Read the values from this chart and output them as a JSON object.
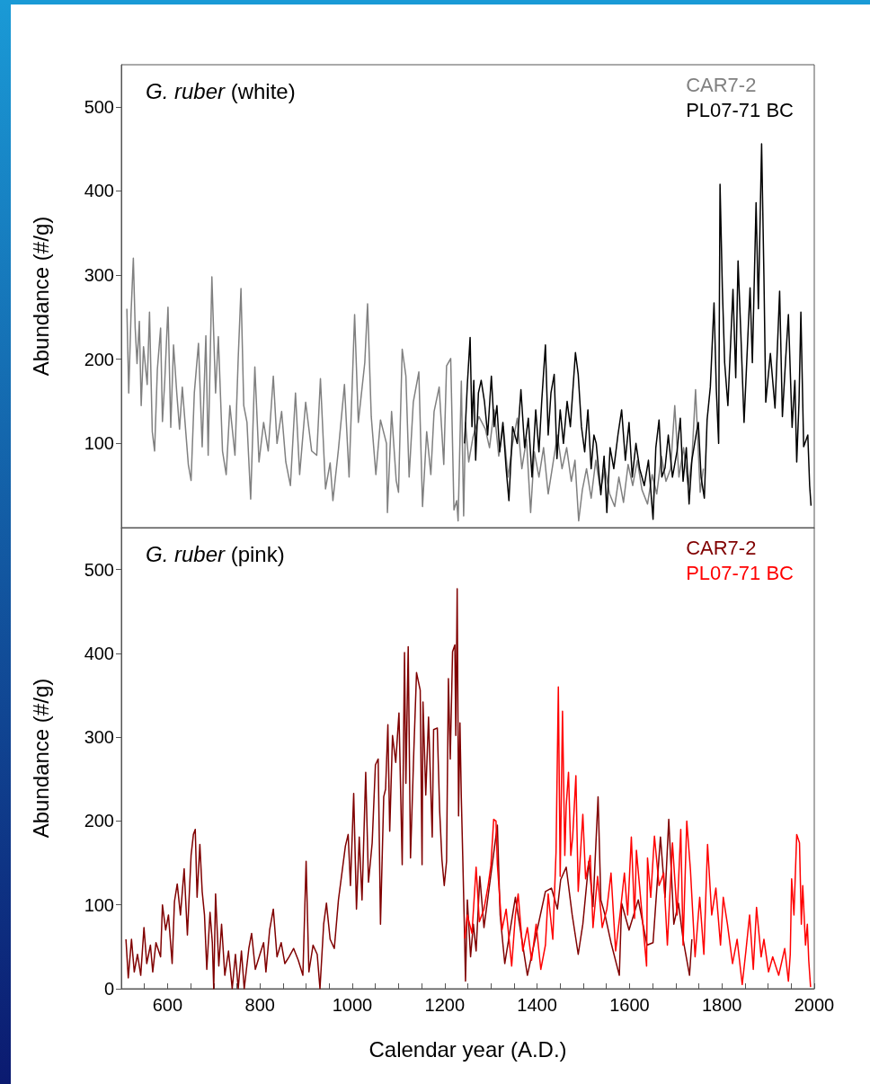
{
  "chart_data": [
    {
      "type": "line",
      "title": "G. ruber (white)",
      "ylabel": "Abundance (#/g)",
      "xlim": [
        500,
        2000
      ],
      "ylim": [
        0,
        550
      ],
      "yticks": [
        100,
        200,
        300,
        400,
        500
      ],
      "tick_labels": "y",
      "grid": false,
      "legend": "top right",
      "marker": "none",
      "line_style": "solid",
      "series": [
        {
          "name": "CAR7-2",
          "color": "#808080",
          "x": [
            512,
            516,
            521,
            526,
            530,
            534,
            539,
            543,
            548,
            556,
            561,
            567,
            572,
            578,
            585,
            589,
            594,
            601,
            607,
            613,
            620,
            626,
            632,
            645,
            651,
            658,
            667,
            675,
            683,
            688,
            696,
            704,
            710,
            719,
            727,
            735,
            746,
            753,
            759,
            765,
            772,
            780,
            789,
            798,
            808,
            818,
            829,
            837,
            847,
            856,
            866,
            877,
            886,
            899,
            912,
            923,
            931,
            942,
            952,
            958,
            970,
            983,
            993,
            1005,
            1013,
            1027,
            1033,
            1041,
            1051,
            1061,
            1074,
            1076,
            1085,
            1095,
            1100,
            1108,
            1116,
            1123,
            1132,
            1144,
            1152,
            1161,
            1170,
            1177,
            1188,
            1198,
            1204,
            1213,
            1220,
            1226,
            1229,
            1236,
            1241,
            1245,
            1252,
            1261,
            1274,
            1288,
            1297,
            1307,
            1317,
            1327,
            1337,
            1347,
            1357,
            1367,
            1377,
            1386,
            1394,
            1404,
            1414,
            1424,
            1434,
            1444,
            1454,
            1464,
            1474,
            1482,
            1490,
            1498,
            1507,
            1517,
            1527,
            1537,
            1547,
            1557,
            1568,
            1577,
            1587,
            1597,
            1607,
            1617,
            1627,
            1639,
            1649,
            1659,
            1669,
            1679,
            1689,
            1698,
            1707,
            1717,
            1727,
            1735,
            1743,
            1753,
            1760
          ],
          "values": [
            260,
            160,
            254,
            320,
            237,
            195,
            245,
            145,
            215,
            170,
            256,
            114,
            91,
            188,
            237,
            126,
            174,
            262,
            119,
            217,
            160,
            117,
            167,
            75,
            56,
            160,
            219,
            96,
            228,
            86,
            298,
            160,
            227,
            91,
            63,
            145,
            86,
            201,
            284,
            145,
            125,
            34,
            191,
            78,
            125,
            91,
            180,
            100,
            138,
            78,
            50,
            160,
            63,
            149,
            91,
            86,
            177,
            46,
            77,
            32,
            93,
            170,
            60,
            253,
            125,
            196,
            266,
            132,
            63,
            128,
            100,
            18,
            138,
            56,
            42,
            212,
            180,
            60,
            149,
            185,
            25,
            114,
            63,
            138,
            167,
            75,
            192,
            201,
            21,
            32,
            8,
            174,
            14,
            125,
            78,
            107,
            132,
            117,
            95,
            140,
            85,
            120,
            60,
            100,
            130,
            70,
            105,
            18,
            90,
            60,
            95,
            40,
            75,
            110,
            70,
            95,
            55,
            80,
            8,
            45,
            70,
            35,
            80,
            45,
            70,
            40,
            25,
            60,
            30,
            75,
            50,
            80,
            45,
            28,
            63,
            40,
            85,
            55,
            70,
            145,
            60,
            95,
            50,
            80,
            164,
            42,
            70
          ]
        },
        {
          "name": "PL07-71 BC",
          "color": "#000000",
          "x": [
            1243,
            1249,
            1255,
            1259,
            1263,
            1267,
            1273,
            1279,
            1286,
            1293,
            1301,
            1307,
            1313,
            1319,
            1326,
            1333,
            1339,
            1347,
            1357,
            1365,
            1373,
            1381,
            1389,
            1397,
            1404,
            1410,
            1418,
            1424,
            1430,
            1437,
            1443,
            1450,
            1457,
            1465,
            1472,
            1483,
            1489,
            1496,
            1503,
            1510,
            1517,
            1523,
            1528,
            1538,
            1545,
            1551,
            1558,
            1566,
            1575,
            1583,
            1591,
            1599,
            1606,
            1614,
            1622,
            1632,
            1641,
            1651,
            1657,
            1664,
            1670,
            1677,
            1684,
            1693,
            1703,
            1710,
            1716,
            1723,
            1729,
            1735,
            1744,
            1749,
            1755,
            1762,
            1768,
            1775,
            1783,
            1788,
            1793,
            1796,
            1801,
            1806,
            1813,
            1819,
            1824,
            1830,
            1835,
            1841,
            1848,
            1856,
            1861,
            1866,
            1874,
            1879,
            1886,
            1891,
            1895,
            1905,
            1915,
            1925,
            1931,
            1938,
            1944,
            1952,
            1958,
            1962,
            1967,
            1971,
            1977,
            1986,
            1990,
            1993
          ],
          "values": [
            100,
            170,
            226,
            120,
            175,
            80,
            160,
            175,
            150,
            110,
            180,
            120,
            145,
            90,
            125,
            70,
            32,
            120,
            100,
            164,
            95,
            130,
            60,
            140,
            90,
            150,
            217,
            110,
            160,
            182,
            82,
            140,
            100,
            150,
            120,
            208,
            182,
            120,
            90,
            140,
            70,
            110,
            100,
            39,
            85,
            18,
            95,
            70,
            110,
            140,
            80,
            125,
            60,
            100,
            70,
            50,
            80,
            10,
            95,
            128,
            60,
            71,
            110,
            60,
            91,
            130,
            55,
            95,
            28,
            80,
            110,
            125,
            60,
            35,
            128,
            167,
            267,
            164,
            100,
            408,
            285,
            196,
            145,
            220,
            283,
            178,
            317,
            231,
            125,
            224,
            285,
            196,
            386,
            260,
            456,
            299,
            149,
            207,
            142,
            281,
            132,
            200,
            253,
            119,
            175,
            78,
            150,
            256,
            96,
            110,
            50,
            26
          ]
        }
      ]
    },
    {
      "type": "line",
      "title": "G. ruber (pink)",
      "xlabel": "Calendar year (A.D.)",
      "ylabel": "Abundance (#/g)",
      "xlim": [
        500,
        2000
      ],
      "ylim": [
        0,
        550
      ],
      "xticks": [
        {
          "value": 500,
          "label": null
        },
        {
          "value": 550,
          "label": null
        },
        600,
        {
          "value": 650,
          "label": null
        },
        {
          "value": 700,
          "label": null
        },
        {
          "value": 750,
          "label": null
        },
        800,
        {
          "value": 850,
          "label": null
        },
        {
          "value": 900,
          "label": null
        },
        {
          "value": 950,
          "label": null
        },
        1000,
        {
          "value": 1050,
          "label": null
        },
        {
          "value": 1100,
          "label": null
        },
        {
          "value": 1150,
          "label": null
        },
        1200,
        {
          "value": 1250,
          "label": null
        },
        {
          "value": 1300,
          "label": null
        },
        {
          "value": 1350,
          "label": null
        },
        1400,
        {
          "value": 1450,
          "label": null
        },
        {
          "value": 1500,
          "label": null
        },
        {
          "value": 1550,
          "label": null
        },
        1600,
        {
          "value": 1650,
          "label": null
        },
        {
          "value": 1700,
          "label": null
        },
        {
          "value": 1750,
          "label": null
        },
        1800,
        {
          "value": 1850,
          "label": null
        },
        {
          "value": 1900,
          "label": null
        },
        {
          "value": 1950,
          "label": null
        },
        2000
      ],
      "yticks": [
        0,
        100,
        200,
        300,
        400,
        500
      ],
      "grid": false,
      "legend": "top right",
      "marker": "none",
      "line_style": "solid",
      "series": [
        {
          "name": "CAR7-2",
          "color": "#800000",
          "x": [
            510,
            515,
            522,
            528,
            535,
            542,
            549,
            555,
            563,
            568,
            575,
            585,
            589,
            596,
            602,
            610,
            615,
            621,
            628,
            636,
            643,
            651,
            656,
            660,
            664,
            670,
            675,
            680,
            685,
            692,
            697,
            700,
            704,
            711,
            717,
            724,
            732,
            740,
            747,
            753,
            760,
            766,
            776,
            782,
            790,
            800,
            808,
            813,
            821,
            829,
            837,
            846,
            854,
            863,
            873,
            883,
            893,
            900,
            906,
            915,
            924,
            930,
            938,
            944,
            952,
            961,
            970,
            978,
            985,
            991,
            996,
            1003,
            1009,
            1015,
            1021,
            1029,
            1035,
            1043,
            1050,
            1056,
            1061,
            1068,
            1072,
            1077,
            1081,
            1087,
            1094,
            1101,
            1108,
            1113,
            1116,
            1121,
            1126,
            1133,
            1139,
            1147,
            1151,
            1153,
            1159,
            1165,
            1173,
            1176,
            1184,
            1189,
            1194,
            1199,
            1204,
            1208,
            1212,
            1217,
            1222,
            1224,
            1227,
            1230,
            1233,
            1236,
            1239,
            1243,
            1245,
            1249,
            1256,
            1262,
            1268,
            1276,
            1285,
            1314,
            1320,
            1330,
            1353,
            1379,
            1418,
            1431,
            1444,
            1451,
            1463,
            1476,
            1489,
            1499,
            1512,
            1521,
            1532,
            1538,
            1547,
            1560,
            1578,
            1583,
            1599,
            1619,
            1638,
            1651,
            1667,
            1677,
            1685,
            1696,
            1706,
            1716,
            1730,
            1735
          ],
          "values": [
            59,
            13,
            59,
            20,
            41,
            16,
            73,
            30,
            52,
            20,
            55,
            38,
            100,
            70,
            88,
            30,
            104,
            125,
            88,
            143,
            64,
            159,
            184,
            190,
            109,
            172,
            116,
            88,
            23,
            91,
            55,
            0,
            113,
            27,
            77,
            16,
            45,
            0,
            41,
            0,
            45,
            0,
            48,
            66,
            23,
            41,
            55,
            20,
            70,
            95,
            38,
            55,
            30,
            38,
            48,
            34,
            16,
            152,
            20,
            52,
            41,
            0,
            77,
            102,
            59,
            48,
            106,
            140,
            170,
            184,
            123,
            233,
            95,
            181,
            106,
            258,
            127,
            174,
            267,
            274,
            77,
            229,
            238,
            315,
            188,
            302,
            270,
            329,
            148,
            401,
            245,
            408,
            156,
            281,
            377,
            356,
            148,
            342,
            231,
            324,
            181,
            309,
            311,
            213,
            154,
            123,
            152,
            370,
            274,
            402,
            410,
            302,
            477,
            206,
            317,
            227,
            159,
            63,
            9,
            106,
            38,
            77,
            45,
            134,
            73,
            195,
            88,
            30,
            109,
            16,
            116,
            120,
            95,
            130,
            145,
            88,
            41,
            77,
            152,
            98,
            229,
            106,
            88,
            55,
            16,
            102,
            70,
            106,
            52,
            55,
            181,
            109,
            202,
            77,
            102,
            59,
            16,
            59
          ]
        },
        {
          "name": "PL07-71 BC",
          "color": "#ff0000",
          "x": [
            1243,
            1249,
            1259,
            1268,
            1275,
            1285,
            1294,
            1300,
            1306,
            1311,
            1314,
            1324,
            1333,
            1345,
            1353,
            1359,
            1369,
            1379,
            1388,
            1398,
            1408,
            1418,
            1424,
            1434,
            1441,
            1446,
            1450,
            1455,
            1460,
            1463,
            1468,
            1473,
            1477,
            1484,
            1489,
            1499,
            1505,
            1515,
            1521,
            1531,
            1541,
            1551,
            1560,
            1570,
            1580,
            1589,
            1596,
            1604,
            1611,
            1615,
            1625,
            1637,
            1639,
            1646,
            1654,
            1664,
            1674,
            1682,
            1693,
            1703,
            1711,
            1716,
            1724,
            1732,
            1742,
            1752,
            1761,
            1769,
            1778,
            1787,
            1797,
            1803,
            1812,
            1823,
            1833,
            1844,
            1852,
            1860,
            1868,
            1875,
            1885,
            1891,
            1901,
            1910,
            1923,
            1936,
            1944,
            1948,
            1951,
            1956,
            1962,
            1968,
            1972,
            1975,
            1981,
            1985,
            1988,
            1992
          ],
          "values": [
            60,
            88,
            66,
            145,
            80,
            95,
            123,
            147,
            202,
            200,
            148,
            70,
            95,
            27,
            88,
            113,
            45,
            73,
            34,
            77,
            23,
            52,
            113,
            59,
            163,
            360,
            134,
            331,
            159,
            218,
            258,
            159,
            181,
            254,
            116,
            208,
            131,
            159,
            73,
            134,
            73,
            95,
            138,
            45,
            91,
            138,
            88,
            181,
            84,
            165,
            102,
            27,
            156,
            109,
            182,
            123,
            138,
            52,
            174,
            88,
            190,
            52,
            200,
            141,
            38,
            109,
            41,
            172,
            88,
            120,
            52,
            109,
            77,
            30,
            59,
            5,
            45,
            88,
            23,
            97,
            38,
            59,
            20,
            38,
            16,
            48,
            9,
            41,
            131,
            88,
            184,
            174,
            77,
            123,
            52,
            77,
            34,
            2
          ]
        }
      ]
    }
  ]
}
